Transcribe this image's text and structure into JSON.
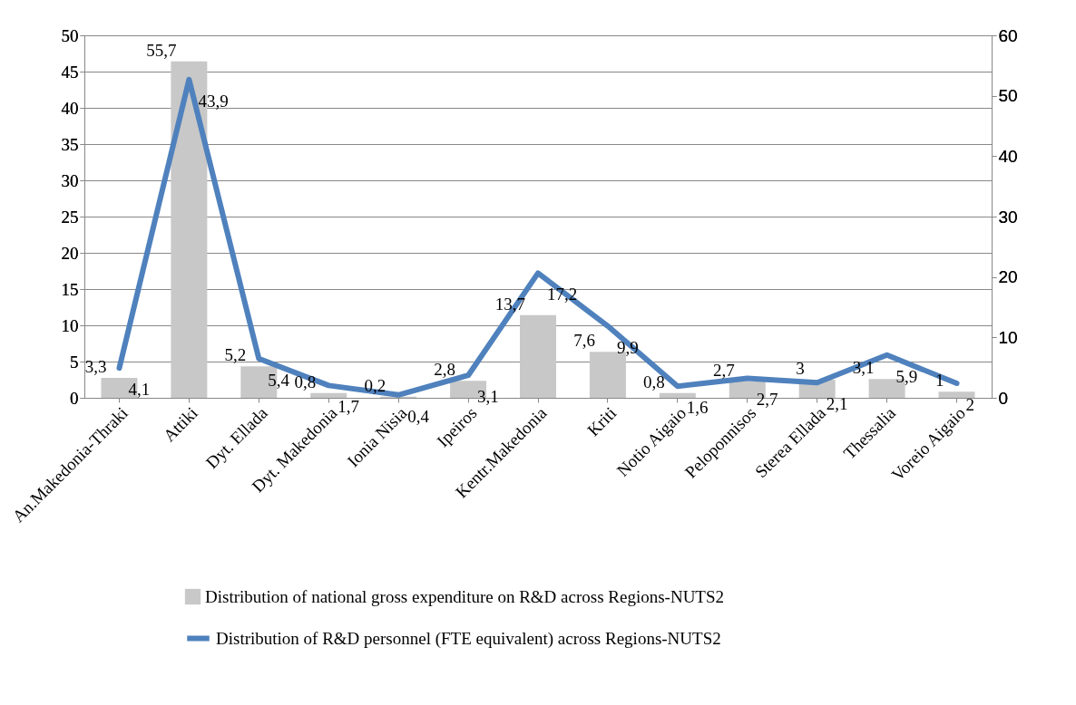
{
  "chart_data": {
    "type": "bar",
    "categories": [
      "An.Makedonia-Thraki",
      "Attiki",
      "Dyt. Ellada",
      "Dyt. Makedonia",
      "Ionia Nisia",
      "Ipeiros",
      "Kentr.Makedonia",
      "Kriti",
      "Notio Aigaio",
      "Peloponnisos",
      "Sterea Ellada",
      "Thessalia",
      "Voreio Aigaio"
    ],
    "series": [
      {
        "name": "Distribution of national gross expenditure on R&D across Regions-NUTS2",
        "axis": "y2",
        "color": "#c8c8c8",
        "values": [
          3.3,
          55.7,
          5.2,
          0.8,
          0.2,
          2.8,
          13.7,
          7.6,
          0.8,
          2.7,
          3,
          3.1,
          1
        ],
        "value_labels": [
          "3,3",
          "55,7",
          "5,2",
          "0,8",
          "0,2",
          "2,8",
          "13,7",
          "7,6",
          "0,8",
          "2,7",
          "3",
          "3,1",
          "1"
        ]
      },
      {
        "name": "Distribution of R&D personnel (FTE equivalent) across Regions-NUTS2",
        "type": "line",
        "axis": "y",
        "color": "#4f81bd",
        "values": [
          4.1,
          43.9,
          5.4,
          1.7,
          0.4,
          3.1,
          17.2,
          9.9,
          1.6,
          2.7,
          2.1,
          5.9,
          2
        ],
        "value_labels": [
          "4,1",
          "43,9",
          "5,4",
          "1,7",
          "0,4",
          "3,1",
          "17,2",
          "9,9",
          "1,6",
          "2,7",
          "2,1",
          "5,9",
          "2"
        ]
      }
    ],
    "ylim": [
      0,
      50
    ],
    "yticks": [
      0,
      5,
      10,
      15,
      20,
      25,
      30,
      35,
      40,
      45,
      50
    ],
    "y2lim": [
      0,
      60
    ],
    "y2ticks": [
      0,
      10,
      20,
      30,
      40,
      50,
      60
    ],
    "grid": "y",
    "legend": "bottom"
  }
}
